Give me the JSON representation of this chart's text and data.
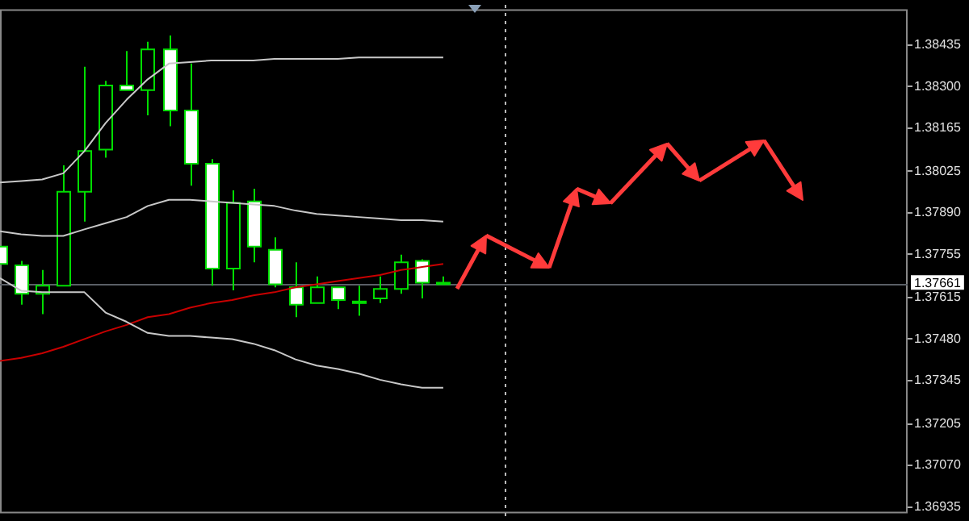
{
  "chart_data": {
    "type": "candlestick",
    "categories": [
      null,
      null,
      null,
      null,
      null,
      null,
      null,
      null,
      null,
      null,
      null,
      null,
      null,
      null,
      null,
      null,
      null,
      null,
      null,
      null,
      null,
      null,
      null,
      null,
      null,
      null,
      null,
      null,
      null,
      null,
      null,
      null,
      null,
      null,
      null,
      null,
      null,
      null,
      null,
      null,
      null,
      null,
      null,
      null
    ],
    "ohlc": [
      [
        1.3778,
        1.3778,
        1.37724,
        1.37724
      ],
      [
        1.37719,
        1.37734,
        1.37592,
        1.37627
      ],
      [
        1.37627,
        1.37704,
        1.37561,
        1.37653
      ],
      [
        1.37653,
        1.38044,
        1.37653,
        1.37958
      ],
      [
        1.37958,
        1.38364,
        1.37861,
        1.3809
      ],
      [
        1.38095,
        1.38318,
        1.38069,
        1.38303
      ],
      [
        1.38303,
        1.38415,
        1.38288,
        1.38288
      ],
      [
        1.38288,
        1.38445,
        1.38206,
        1.3842
      ],
      [
        1.3842,
        1.38465,
        1.38171,
        1.38222
      ],
      [
        1.38222,
        1.38374,
        1.37978,
        1.38049
      ],
      [
        1.38049,
        1.38064,
        1.37653,
        1.37709
      ],
      [
        1.37709,
        1.37963,
        1.37638,
        1.37922
      ],
      [
        1.37927,
        1.37968,
        1.37729,
        1.3778
      ],
      [
        1.3777,
        1.3781,
        1.37648,
        1.37658
      ],
      [
        1.37648,
        1.37729,
        1.37551,
        1.37592
      ],
      [
        1.37597,
        1.37683,
        1.37597,
        1.37648
      ],
      [
        1.37648,
        1.37648,
        1.37577,
        1.37607
      ],
      [
        1.37602,
        1.37653,
        1.37556,
        1.37602
      ],
      [
        1.37612,
        1.37683,
        1.37597,
        1.37643
      ],
      [
        1.37643,
        1.37754,
        1.37627,
        1.37729
      ],
      [
        1.37734,
        1.37739,
        1.37612,
        1.37663
      ],
      [
        1.37663,
        1.37683,
        1.37658,
        1.37663
      ],
      null,
      null,
      null,
      null,
      null,
      null,
      null,
      null,
      null,
      null,
      null,
      null,
      null,
      null,
      null,
      null,
      null,
      null,
      null,
      null,
      null,
      null
    ],
    "series": [
      {
        "type": "line",
        "color": "#c8c8c8",
        "values": [
          1.37988,
          1.37993,
          1.37998,
          1.38018,
          1.3809,
          1.38181,
          1.38257,
          1.38323,
          1.38374,
          1.38379,
          1.38384,
          1.38384,
          1.38384,
          1.38389,
          1.38389,
          1.38389,
          1.38389,
          1.38394,
          1.38394,
          1.38394,
          1.38394,
          1.38394,
          null,
          null,
          null,
          null,
          null,
          null,
          null,
          null,
          null,
          null,
          null,
          null,
          null,
          null,
          null,
          null,
          null,
          null,
          null,
          null,
          null,
          null
        ]
      },
      {
        "type": "line",
        "color": "#c8c8c8",
        "values": [
          1.3783,
          1.3782,
          1.37815,
          1.37815,
          1.37836,
          1.37856,
          1.37876,
          1.37912,
          1.37932,
          1.37932,
          1.37927,
          1.37922,
          1.37917,
          1.37912,
          1.37897,
          1.37886,
          1.37881,
          1.37876,
          1.37871,
          1.37866,
          1.37866,
          1.37861,
          null,
          null,
          null,
          null,
          null,
          null,
          null,
          null,
          null,
          null,
          null,
          null,
          null,
          null,
          null,
          null,
          null,
          null,
          null,
          null,
          null,
          null
        ]
      },
      {
        "type": "line",
        "color": "#c8c8c8",
        "values": [
          1.37678,
          1.37637,
          1.37632,
          1.37632,
          1.37632,
          1.37566,
          1.37536,
          1.375,
          1.3749,
          1.3749,
          1.37485,
          1.3748,
          1.37465,
          1.37444,
          1.37414,
          1.37394,
          1.37383,
          1.37368,
          1.37348,
          1.37333,
          1.37322,
          1.37322,
          null,
          null,
          null,
          null,
          null,
          null,
          null,
          null,
          null,
          null,
          null,
          null,
          null,
          null,
          null,
          null,
          null,
          null,
          null,
          null,
          null,
          null
        ]
      },
      {
        "type": "line",
        "color": "#c80000",
        "values": [
          1.37409,
          1.37419,
          1.37434,
          1.37455,
          1.3748,
          1.37505,
          1.37526,
          1.37551,
          1.37561,
          1.37582,
          1.37597,
          1.37607,
          1.37622,
          1.37632,
          1.37648,
          1.37658,
          1.37668,
          1.37678,
          1.37688,
          1.37704,
          1.37714,
          1.37724,
          null,
          null,
          null,
          null,
          null,
          null,
          null,
          null,
          null,
          null,
          null,
          null,
          null,
          null,
          null,
          null,
          null,
          null,
          null,
          null,
          null,
          null
        ]
      }
    ],
    "ylim": [
      1.3692,
      1.3855
    ],
    "yticks": [
      1.38435,
      {
        "value": 1.383,
        "label": "1.38300"
      },
      1.38165,
      1.38025,
      {
        "value": 1.3789,
        "label": "1.37890"
      },
      1.37755,
      1.37615,
      {
        "value": 1.3748,
        "label": "1.37480"
      },
      1.37345,
      1.37205,
      {
        "value": 1.3707,
        "label": "1.37070"
      },
      1.36935
    ],
    "ref_lines": [
      {
        "axis": "y",
        "value": 1.37661,
        "label": "1.37661",
        "color": "#5a5f66"
      }
    ],
    "tick_labels": "y",
    "grid": false,
    "legend": false
  }
}
